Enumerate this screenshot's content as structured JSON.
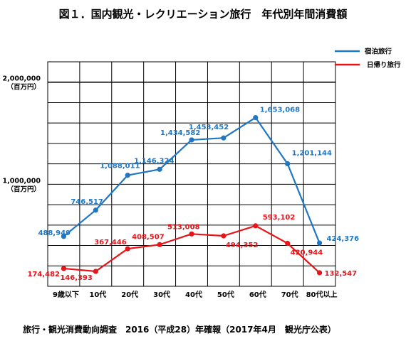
{
  "chart_data": {
    "type": "line",
    "title": "図１．国内観光・レクリエーション旅行　年代別年間消費額",
    "source": "旅行・観光消費動向調査　2016（平成28）年確報（2017年4月　観光庁公表）",
    "categories": [
      "9歳以下",
      "10代",
      "20代",
      "30代",
      "40代",
      "50代",
      "60代",
      "70代",
      "80代以上"
    ],
    "y_tick_labels": [
      {
        "value": 2000000,
        "label": "2,000,000",
        "unit": "（百万円）"
      },
      {
        "value": 1000000,
        "label": "1,000,000",
        "unit": "（百万円）"
      }
    ],
    "grid": true,
    "legend_position": "top-right",
    "series": [
      {
        "name": "宿泊旅行",
        "color": "#1f77c4",
        "values": [
          488949,
          746517,
          1088011,
          1146324,
          1434582,
          1453452,
          1653068,
          1201144,
          424376
        ],
        "labels": [
          "488,949",
          "746,517",
          "1,088,011",
          "1,146,324",
          "1,434,582",
          "1,453,452",
          "1,653,068",
          "1,201,144",
          "424,376"
        ]
      },
      {
        "name": "日帰り旅行",
        "color": "#e8141a",
        "values": [
          174482,
          146393,
          367446,
          408507,
          513008,
          494352,
          593102,
          420944,
          132547
        ],
        "labels": [
          "174,482",
          "146,393",
          "367,446",
          "408,507",
          "513,008",
          "494,352",
          "593,102",
          "420,944",
          "132,547"
        ]
      }
    ]
  }
}
